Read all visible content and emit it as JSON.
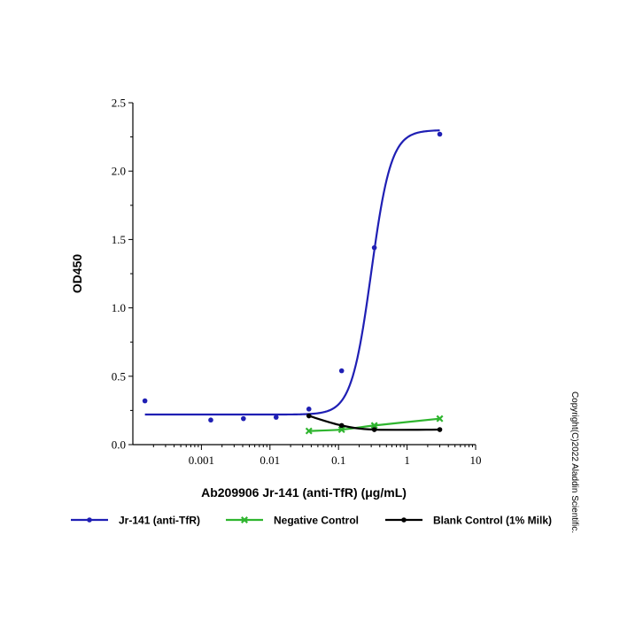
{
  "chart_data": {
    "type": "line",
    "title": "",
    "xlabel": "Ab209906 Jr-141 (anti-TfR) (μg/mL)",
    "ylabel": "OD450",
    "xscale": "log",
    "xlim": [
      0.0001,
      10
    ],
    "ylim": [
      0,
      2.5
    ],
    "x_ticks": [
      0.001,
      0.01,
      0.1,
      1,
      10
    ],
    "x_tick_labels": [
      "0.001",
      "0.01",
      "0.1",
      "1",
      "10"
    ],
    "y_ticks": [
      0,
      0.5,
      1,
      1.5,
      2,
      2.5
    ],
    "y_tick_labels": [
      "0.0",
      "0.5",
      "1.0",
      "1.5",
      "2.0",
      "2.5"
    ],
    "grid": false,
    "legend_position": "bottom",
    "series": [
      {
        "name": "Jr-141 (anti-TfR)",
        "color": "#1f1fb4",
        "marker": "dot",
        "x": [
          0.00015,
          0.00137,
          0.0041,
          0.0123,
          0.037,
          0.111,
          0.333,
          3
        ],
        "y": [
          0.32,
          0.18,
          0.19,
          0.2,
          0.26,
          0.54,
          1.44,
          2.27
        ],
        "fit": {
          "bottom": 0.22,
          "top": 2.3,
          "ec50": 0.3,
          "hill": 3.0
        }
      },
      {
        "name": "Negative Control",
        "color": "#2fb52f",
        "marker": "x",
        "x": [
          0.037,
          0.111,
          0.333,
          3
        ],
        "y": [
          0.1,
          0.11,
          0.14,
          0.19
        ]
      },
      {
        "name": "Blank Control (1% Milk)",
        "color": "#000000",
        "marker": "dot",
        "x": [
          0.037,
          0.111,
          0.333,
          3
        ],
        "y": [
          0.21,
          0.14,
          0.11,
          0.11
        ]
      }
    ]
  },
  "copyright": "Copyright(C)2022 Aladdin Scientific."
}
